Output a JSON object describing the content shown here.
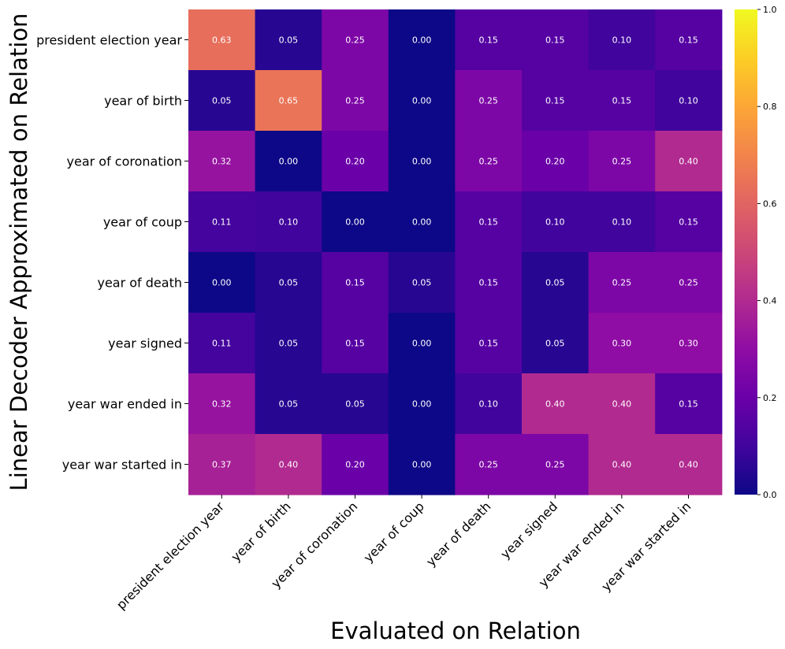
{
  "chart_data": {
    "type": "heatmap",
    "title": "",
    "xlabel": "Evaluated on Relation",
    "ylabel": "Linear Decoder Approximated on Relation",
    "x_categories": [
      "president election year",
      "year of birth",
      "year of coronation",
      "year of coup",
      "year of death",
      "year signed",
      "year war ended in",
      "year war started in"
    ],
    "y_categories": [
      "president election year",
      "year of birth",
      "year of coronation",
      "year of coup",
      "year of death",
      "year signed",
      "year war ended in",
      "year war started in"
    ],
    "values": [
      [
        0.63,
        0.05,
        0.25,
        0.0,
        0.15,
        0.15,
        0.1,
        0.15
      ],
      [
        0.05,
        0.65,
        0.25,
        0.0,
        0.25,
        0.15,
        0.15,
        0.1
      ],
      [
        0.32,
        0.0,
        0.2,
        0.0,
        0.25,
        0.2,
        0.25,
        0.4
      ],
      [
        0.11,
        0.1,
        0.0,
        0.0,
        0.15,
        0.1,
        0.1,
        0.15
      ],
      [
        0.0,
        0.05,
        0.15,
        0.05,
        0.15,
        0.05,
        0.25,
        0.25
      ],
      [
        0.11,
        0.05,
        0.15,
        0.0,
        0.15,
        0.05,
        0.3,
        0.3
      ],
      [
        0.32,
        0.05,
        0.05,
        0.0,
        0.1,
        0.4,
        0.4,
        0.15
      ],
      [
        0.37,
        0.4,
        0.2,
        0.0,
        0.25,
        0.25,
        0.4,
        0.4
      ]
    ],
    "value_labels": [
      [
        "0.63",
        "0.05",
        "0.25",
        "0.00",
        "0.15",
        "0.15",
        "0.10",
        "0.15"
      ],
      [
        "0.05",
        "0.65",
        "0.25",
        "0.00",
        "0.25",
        "0.15",
        "0.15",
        "0.10"
      ],
      [
        "0.32",
        "0.00",
        "0.20",
        "0.00",
        "0.25",
        "0.20",
        "0.25",
        "0.40"
      ],
      [
        "0.11",
        "0.10",
        "0.00",
        "0.00",
        "0.15",
        "0.10",
        "0.10",
        "0.15"
      ],
      [
        "0.00",
        "0.05",
        "0.15",
        "0.05",
        "0.15",
        "0.05",
        "0.25",
        "0.25"
      ],
      [
        "0.11",
        "0.05",
        "0.15",
        "0.00",
        "0.15",
        "0.05",
        "0.30",
        "0.30"
      ],
      [
        "0.32",
        "0.05",
        "0.05",
        "0.00",
        "0.10",
        "0.40",
        "0.40",
        "0.15"
      ],
      [
        "0.37",
        "0.40",
        "0.20",
        "0.00",
        "0.25",
        "0.25",
        "0.40",
        "0.40"
      ]
    ],
    "colormap": "plasma",
    "vmin": 0.0,
    "vmax": 1.0,
    "colorbar_ticks": [
      "0.0",
      "0.2",
      "0.4",
      "0.6",
      "0.8",
      "1.0"
    ],
    "grid": false
  }
}
